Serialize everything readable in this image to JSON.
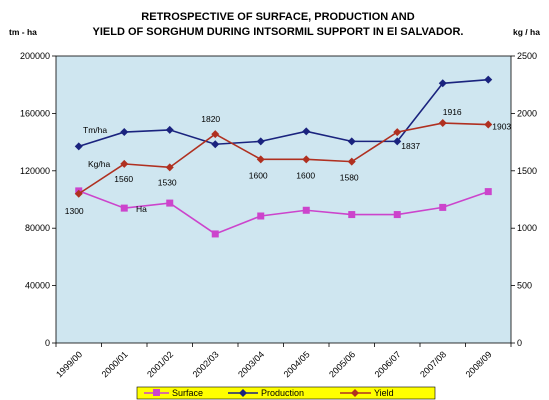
{
  "chart_data": {
    "type": "line",
    "title_line1": "RETROSPECTIVE OF SURFACE, PRODUCTION AND",
    "title_line2": "YIELD OF SORGHUM DURING INTSORMIL SUPPORT IN El SALVADOR.",
    "y_left_label": "tm - ha",
    "y_right_label": "kg / ha",
    "categories": [
      "1999/00",
      "2000/01",
      "2001/02",
      "2002/03",
      "2003/04",
      "2004/05",
      "2005/06",
      "2006/07",
      "2007/08",
      "2008/09"
    ],
    "y_left_range": [
      0,
      200000
    ],
    "y_left_ticks": [
      "0",
      "40000",
      "80000",
      "120000",
      "160000",
      "200000"
    ],
    "y_right_range": [
      0,
      2500
    ],
    "y_right_ticks": [
      "0",
      "500",
      "1000",
      "1500",
      "2000",
      "2500"
    ],
    "grid": false,
    "legend_position": "bottom",
    "series": [
      {
        "name": "Surface",
        "axis": "left",
        "color": "#cc44cc",
        "values": [
          106000,
          94000,
          97500,
          76000,
          88500,
          92500,
          89500,
          89500,
          94500,
          105500
        ]
      },
      {
        "name": "Production",
        "axis": "left",
        "color": "#1a237e",
        "values": [
          137000,
          147000,
          148500,
          138500,
          140500,
          147500,
          140500,
          140500,
          181000,
          183500
        ]
      },
      {
        "name": "Yield",
        "axis": "right",
        "color": "#b03020",
        "values": [
          1300,
          1560,
          1530,
          1820,
          1600,
          1600,
          1580,
          1837,
          1916,
          1903
        ]
      }
    ],
    "annotations": {
      "series_labels": [
        "Tm/ha",
        "Kg/ha",
        "Ha"
      ],
      "yield_value_labels": [
        "1300",
        "1560",
        "1530",
        "1820",
        "1600",
        "1600",
        "1580",
        "1837",
        "1916",
        "1903"
      ]
    }
  }
}
